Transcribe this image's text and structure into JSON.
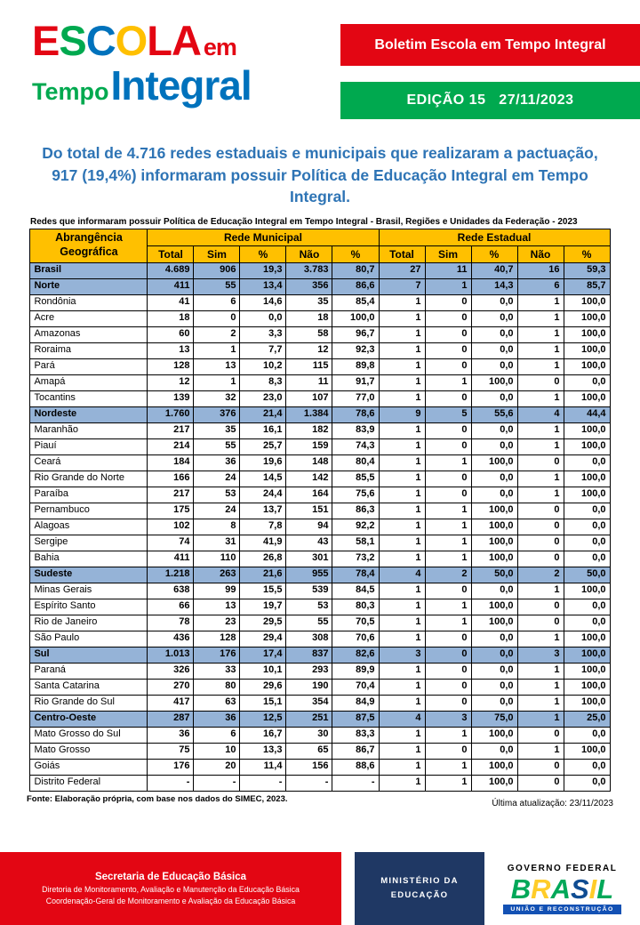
{
  "colors": {
    "red": "#E30613",
    "green": "#00A94F",
    "logo_blue": "#0072BC",
    "yellow": "#FFC000",
    "headline_blue": "#2E74B5",
    "region_row_blue": "#95B3D7",
    "ministry_navy": "#1F3864",
    "gov_blue_bar": "#1351B4"
  },
  "header": {
    "logo": {
      "escola_letters": [
        {
          "ch": "E",
          "color": "#E30613"
        },
        {
          "ch": "S",
          "color": "#00A94F"
        },
        {
          "ch": "C",
          "color": "#0072BC"
        },
        {
          "ch": "O",
          "color": "#FFC000"
        },
        {
          "ch": "L",
          "color": "#E30613"
        },
        {
          "ch": "A",
          "color": "#E30613"
        }
      ],
      "em": "em",
      "tempo": "Tempo",
      "integral": "Integral"
    },
    "banner_title": "Boletim Escola em Tempo Integral",
    "edition": "EDIÇÃO 15   27/11/2023"
  },
  "headline": "Do total de 4.716 redes estaduais e municipais que realizaram a pactuação, 917 (19,4%) informaram possuir Política de Educação Integral em Tempo Integral.",
  "table": {
    "title": "Redes que informaram possuir Política de Educação Integral em Tempo Integral - Brasil, Regiões e Unidades da Federação - 2023",
    "col_geo": "Abrangência Geográfica",
    "group_municipal": "Rede Municipal",
    "group_estadual": "Rede Estadual",
    "subheaders": [
      "Total",
      "Sim",
      "%",
      "Não",
      "%",
      "Total",
      "Sim",
      "%",
      "Não",
      "%"
    ],
    "rows": [
      {
        "name": "Brasil",
        "type": "region",
        "values": [
          "4.689",
          "906",
          "19,3",
          "3.783",
          "80,7",
          "27",
          "11",
          "40,7",
          "16",
          "59,3"
        ]
      },
      {
        "name": "Norte",
        "type": "region",
        "values": [
          "411",
          "55",
          "13,4",
          "356",
          "86,6",
          "7",
          "1",
          "14,3",
          "6",
          "85,7"
        ]
      },
      {
        "name": "Rondônia",
        "type": "state",
        "values": [
          "41",
          "6",
          "14,6",
          "35",
          "85,4",
          "1",
          "0",
          "0,0",
          "1",
          "100,0"
        ]
      },
      {
        "name": "Acre",
        "type": "state",
        "values": [
          "18",
          "0",
          "0,0",
          "18",
          "100,0",
          "1",
          "0",
          "0,0",
          "1",
          "100,0"
        ]
      },
      {
        "name": "Amazonas",
        "type": "state",
        "values": [
          "60",
          "2",
          "3,3",
          "58",
          "96,7",
          "1",
          "0",
          "0,0",
          "1",
          "100,0"
        ]
      },
      {
        "name": "Roraima",
        "type": "state",
        "values": [
          "13",
          "1",
          "7,7",
          "12",
          "92,3",
          "1",
          "0",
          "0,0",
          "1",
          "100,0"
        ]
      },
      {
        "name": "Pará",
        "type": "state",
        "values": [
          "128",
          "13",
          "10,2",
          "115",
          "89,8",
          "1",
          "0",
          "0,0",
          "1",
          "100,0"
        ]
      },
      {
        "name": "Amapá",
        "type": "state",
        "values": [
          "12",
          "1",
          "8,3",
          "11",
          "91,7",
          "1",
          "1",
          "100,0",
          "0",
          "0,0"
        ]
      },
      {
        "name": "Tocantins",
        "type": "state",
        "values": [
          "139",
          "32",
          "23,0",
          "107",
          "77,0",
          "1",
          "0",
          "0,0",
          "1",
          "100,0"
        ]
      },
      {
        "name": "Nordeste",
        "type": "region",
        "values": [
          "1.760",
          "376",
          "21,4",
          "1.384",
          "78,6",
          "9",
          "5",
          "55,6",
          "4",
          "44,4"
        ]
      },
      {
        "name": "Maranhão",
        "type": "state",
        "values": [
          "217",
          "35",
          "16,1",
          "182",
          "83,9",
          "1",
          "0",
          "0,0",
          "1",
          "100,0"
        ]
      },
      {
        "name": "Piauí",
        "type": "state",
        "values": [
          "214",
          "55",
          "25,7",
          "159",
          "74,3",
          "1",
          "0",
          "0,0",
          "1",
          "100,0"
        ]
      },
      {
        "name": "Ceará",
        "type": "state",
        "values": [
          "184",
          "36",
          "19,6",
          "148",
          "80,4",
          "1",
          "1",
          "100,0",
          "0",
          "0,0"
        ]
      },
      {
        "name": "Rio Grande do Norte",
        "type": "state",
        "values": [
          "166",
          "24",
          "14,5",
          "142",
          "85,5",
          "1",
          "0",
          "0,0",
          "1",
          "100,0"
        ]
      },
      {
        "name": "Paraíba",
        "type": "state",
        "values": [
          "217",
          "53",
          "24,4",
          "164",
          "75,6",
          "1",
          "0",
          "0,0",
          "1",
          "100,0"
        ]
      },
      {
        "name": "Pernambuco",
        "type": "state",
        "values": [
          "175",
          "24",
          "13,7",
          "151",
          "86,3",
          "1",
          "1",
          "100,0",
          "0",
          "0,0"
        ]
      },
      {
        "name": "Alagoas",
        "type": "state",
        "values": [
          "102",
          "8",
          "7,8",
          "94",
          "92,2",
          "1",
          "1",
          "100,0",
          "0",
          "0,0"
        ]
      },
      {
        "name": "Sergipe",
        "type": "state",
        "values": [
          "74",
          "31",
          "41,9",
          "43",
          "58,1",
          "1",
          "1",
          "100,0",
          "0",
          "0,0"
        ]
      },
      {
        "name": "Bahia",
        "type": "state",
        "values": [
          "411",
          "110",
          "26,8",
          "301",
          "73,2",
          "1",
          "1",
          "100,0",
          "0",
          "0,0"
        ]
      },
      {
        "name": "Sudeste",
        "type": "region",
        "values": [
          "1.218",
          "263",
          "21,6",
          "955",
          "78,4",
          "4",
          "2",
          "50,0",
          "2",
          "50,0"
        ]
      },
      {
        "name": "Minas Gerais",
        "type": "state",
        "values": [
          "638",
          "99",
          "15,5",
          "539",
          "84,5",
          "1",
          "0",
          "0,0",
          "1",
          "100,0"
        ]
      },
      {
        "name": "Espírito Santo",
        "type": "state",
        "values": [
          "66",
          "13",
          "19,7",
          "53",
          "80,3",
          "1",
          "1",
          "100,0",
          "0",
          "0,0"
        ]
      },
      {
        "name": "Rio de Janeiro",
        "type": "state",
        "values": [
          "78",
          "23",
          "29,5",
          "55",
          "70,5",
          "1",
          "1",
          "100,0",
          "0",
          "0,0"
        ]
      },
      {
        "name": "São Paulo",
        "type": "state",
        "values": [
          "436",
          "128",
          "29,4",
          "308",
          "70,6",
          "1",
          "0",
          "0,0",
          "1",
          "100,0"
        ]
      },
      {
        "name": "Sul",
        "type": "region",
        "values": [
          "1.013",
          "176",
          "17,4",
          "837",
          "82,6",
          "3",
          "0",
          "0,0",
          "3",
          "100,0"
        ]
      },
      {
        "name": "Paraná",
        "type": "state",
        "values": [
          "326",
          "33",
          "10,1",
          "293",
          "89,9",
          "1",
          "0",
          "0,0",
          "1",
          "100,0"
        ]
      },
      {
        "name": "Santa Catarina",
        "type": "state",
        "values": [
          "270",
          "80",
          "29,6",
          "190",
          "70,4",
          "1",
          "0",
          "0,0",
          "1",
          "100,0"
        ]
      },
      {
        "name": "Rio Grande do Sul",
        "type": "state",
        "values": [
          "417",
          "63",
          "15,1",
          "354",
          "84,9",
          "1",
          "0",
          "0,0",
          "1",
          "100,0"
        ]
      },
      {
        "name": "Centro-Oeste",
        "type": "region",
        "values": [
          "287",
          "36",
          "12,5",
          "251",
          "87,5",
          "4",
          "3",
          "75,0",
          "1",
          "25,0"
        ]
      },
      {
        "name": "Mato Grosso do Sul",
        "type": "state",
        "values": [
          "36",
          "6",
          "16,7",
          "30",
          "83,3",
          "1",
          "1",
          "100,0",
          "0",
          "0,0"
        ]
      },
      {
        "name": "Mato Grosso",
        "type": "state",
        "values": [
          "75",
          "10",
          "13,3",
          "65",
          "86,7",
          "1",
          "0",
          "0,0",
          "1",
          "100,0"
        ]
      },
      {
        "name": "Goiás",
        "type": "state",
        "values": [
          "176",
          "20",
          "11,4",
          "156",
          "88,6",
          "1",
          "1",
          "100,0",
          "0",
          "0,0"
        ]
      },
      {
        "name": "Distrito Federal",
        "type": "state",
        "values": [
          "-",
          "-",
          "-",
          "-",
          "-",
          "1",
          "1",
          "100,0",
          "0",
          "0,0"
        ]
      }
    ]
  },
  "footer": {
    "source": "Fonte: Elaboração própria, com base nos dados do SIMEC, 2023.",
    "updated": "Última atualização: 23/11/2023"
  },
  "bottom": {
    "secretaria_title": "Secretaria de Educação Básica",
    "secretaria_line2": "Diretoria de Monitoramento, Avaliação e Manutenção da Educação Básica",
    "secretaria_line3": "Coordenação-Geral de Monitoramento e Avaliação da Educação Básica",
    "ministry": "MINISTÉRIO DA EDUCAÇÃO",
    "gov_federal": "GOVERNO FEDERAL",
    "brasil_letters": [
      {
        "ch": "B",
        "color": "#00A859"
      },
      {
        "ch": "R",
        "color": "#FFCC29"
      },
      {
        "ch": "A",
        "color": "#00A859"
      },
      {
        "ch": "S",
        "color": "#0F4C92"
      },
      {
        "ch": "I",
        "color": "#FFCC29"
      },
      {
        "ch": "L",
        "color": "#00A859"
      }
    ],
    "uniao": "UNIÃO E RECONSTRUÇÃO"
  }
}
